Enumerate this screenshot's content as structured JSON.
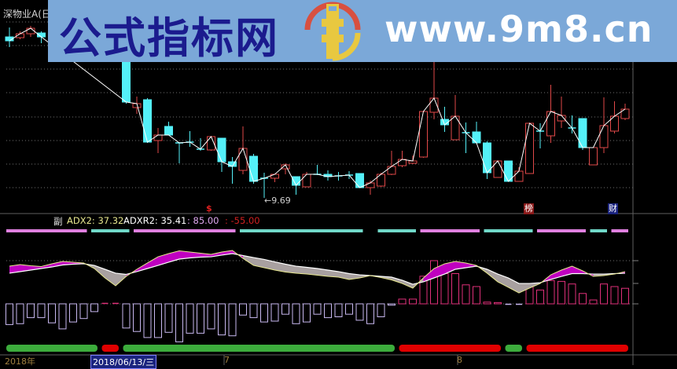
{
  "window": {
    "title": "深物业A(日"
  },
  "watermark": {
    "site_name": "公式指标网",
    "url": "www.9m8.cn",
    "logo_text": "www.9m8.cn"
  },
  "price_pane": {
    "low_label": "←9.69",
    "markers": [
      {
        "text": "$",
        "color": "#e02020"
      },
      {
        "text": "榜",
        "bg": "#8b1a1a"
      },
      {
        "text": "财",
        "bg": "#1a237e"
      }
    ],
    "candles_ohlc": [
      [
        13.79,
        14.03,
        13.53,
        13.69
      ],
      [
        13.77,
        13.93,
        13.73,
        13.87
      ],
      [
        13.87,
        14.07,
        13.79,
        14.01
      ],
      [
        13.89,
        13.93,
        13.63,
        13.79
      ],
      null,
      null,
      null,
      null,
      null,
      null,
      null,
      [
        13.53,
        13.63,
        12.09,
        12.13
      ],
      [
        11.99,
        12.27,
        11.83,
        12.09
      ],
      [
        12.19,
        12.23,
        11.09,
        11.11
      ],
      [
        11.15,
        11.47,
        10.83,
        11.29
      ],
      [
        11.51,
        11.63,
        11.29,
        11.29
      ],
      [
        11.09,
        11.11,
        10.57,
        11.09
      ],
      [
        11.11,
        11.39,
        10.99,
        11.11
      ],
      [
        10.93,
        11.21,
        10.89,
        10.93
      ],
      [
        10.91,
        11.25,
        10.89,
        11.25
      ],
      [
        11.21,
        11.21,
        10.35,
        10.61
      ],
      [
        10.61,
        10.73,
        10.05,
        10.49
      ],
      [
        10.39,
        11.51,
        10.29,
        10.95
      ],
      [
        10.75,
        10.81,
        10.05,
        10.11
      ],
      [
        10.19,
        10.33,
        9.69,
        10.19
      ],
      [
        10.19,
        10.29,
        10.09,
        10.29
      ],
      [
        10.43,
        10.57,
        10.29,
        10.53
      ],
      [
        10.23,
        10.23,
        9.77,
        10.01
      ],
      [
        9.97,
        10.35,
        9.97,
        10.29
      ],
      [
        10.29,
        10.53,
        10.27,
        10.29
      ],
      [
        10.29,
        10.39,
        10.13,
        10.23
      ],
      [
        10.25,
        10.35,
        10.13,
        10.25
      ],
      [
        10.27,
        10.37,
        10.17,
        10.27
      ],
      [
        10.31,
        10.31,
        9.95,
        9.95
      ],
      [
        9.95,
        10.13,
        9.77,
        10.07
      ],
      [
        9.99,
        10.33,
        9.97,
        10.29
      ],
      [
        10.29,
        10.89,
        10.27,
        10.49
      ],
      [
        10.51,
        10.89,
        10.47,
        10.67
      ],
      [
        10.57,
        10.77,
        10.55,
        10.63
      ],
      [
        10.73,
        11.91,
        10.71,
        11.89
      ],
      [
        11.87,
        13.23,
        11.69,
        12.23
      ],
      [
        11.69,
        12.01,
        11.37,
        11.55
      ],
      [
        11.17,
        12.31,
        11.17,
        11.77
      ],
      [
        11.35,
        11.61,
        10.83,
        11.35
      ],
      [
        11.37,
        11.63,
        11.09,
        11.09
      ],
      [
        11.09,
        11.13,
        10.17,
        10.33
      ],
      [
        10.21,
        10.63,
        10.21,
        10.63
      ],
      [
        10.63,
        10.63,
        10.11,
        10.11
      ],
      [
        10.11,
        10.47,
        10.11,
        10.37
      ],
      [
        10.31,
        11.59,
        10.31,
        11.59
      ],
      [
        11.39,
        11.59,
        10.95,
        11.39
      ],
      [
        11.27,
        12.57,
        11.09,
        11.89
      ],
      [
        11.65,
        12.27,
        11.47,
        11.79
      ],
      [
        11.47,
        11.79,
        11.33,
        11.47
      ],
      [
        11.71,
        11.71,
        10.91,
        10.97
      ],
      [
        10.53,
        10.97,
        10.53,
        10.97
      ],
      [
        10.97,
        12.25,
        10.83,
        11.53
      ],
      [
        11.39,
        12.15,
        11.33,
        11.77
      ],
      [
        11.71,
        12.09,
        11.67,
        11.95
      ]
    ],
    "colors": {
      "up": "#e04848",
      "down": "#54f0f8",
      "ma": "#ffffff"
    }
  },
  "indicator": {
    "name": "副",
    "adx_label": "ADX2: 37.32",
    "adxr_label": "ADXR2: 35.41",
    "upper_label": ": 85.00",
    "lower_label": ": -55.00",
    "adx": [
      43.6,
      45.5,
      44.1,
      43.2,
      46.4,
      49.1,
      48.2,
      47.3,
      40.9,
      30,
      20.9,
      31.8,
      40,
      47.3,
      54.5,
      58.2,
      61.4,
      60,
      58.6,
      57.3,
      60,
      61.8,
      52.7,
      44.5,
      41.8,
      39.1,
      36.8,
      35.5,
      34.5,
      33.2,
      31.8,
      30.9,
      28.2,
      30,
      32.7,
      30.5,
      27.7,
      23.6,
      18.2,
      30,
      40.9,
      46.4,
      49.1,
      47.3,
      44.5,
      35.5,
      25.5,
      19.1,
      12.7,
      18.2,
      23.6,
      33.6,
      39.1,
      43.6,
      38.2,
      31.8,
      32.7,
      34.5,
      37.32
    ],
    "adxr": [
      35.5,
      37.3,
      39.1,
      40.9,
      42.7,
      45,
      45.9,
      46.4,
      44.5,
      40,
      35.5,
      34.1,
      37.3,
      40.9,
      44.5,
      48.2,
      51.8,
      53.2,
      54.1,
      54.5,
      56.4,
      58.2,
      55.9,
      53.6,
      51.4,
      48.6,
      45.9,
      43.6,
      42.3,
      40.9,
      39.1,
      37.3,
      35,
      33.6,
      32.7,
      31.8,
      30.9,
      27.3,
      22.7,
      25.5,
      30,
      34.5,
      40,
      41.8,
      43.6,
      40,
      34.5,
      30,
      23.6,
      23.6,
      24.5,
      28.2,
      31.8,
      35,
      35,
      34.5,
      34.5,
      35,
      35.41
    ],
    "hist": [
      -24,
      -23,
      -16,
      -16,
      -22,
      -29,
      -21,
      -17,
      -9,
      0.5,
      0.5,
      -28,
      -32,
      -39,
      -39,
      -33,
      -44,
      -34,
      -34,
      -29,
      -36,
      -37,
      -13,
      -16,
      -21,
      -20,
      -12,
      -23,
      -21,
      -12,
      -16,
      -15,
      -12,
      -19,
      -23,
      -15,
      -1.5,
      5.5,
      5.5,
      32,
      50,
      35,
      35,
      22,
      20,
      2,
      1.5,
      -0.5,
      -0.5,
      20,
      16,
      27,
      26,
      23,
      12,
      4.5,
      23,
      20,
      18
    ],
    "signal_top": "PPPPPPPPCCCCPPPPPPPPPPCCCCCCCCCCCC_CCCCPPPPPPCCCCCPPPPPCCPP",
    "signal_bottom": "GGGGGGGGGRRGGGGGGGGGGGGGGGGGGGGGGGGGGRRRRRRRRRRGGRRRRRRRRRR",
    "colors": {
      "adx": "#e8e890",
      "adxr": "#ffffff",
      "rise_fill": "#c000c0",
      "fall_fill": "#a8a0a0",
      "hist_pos": "#e0307a",
      "hist_neg": "#c8b8f0",
      "sig_pink": "#e080e0",
      "sig_cyan": "#70d8c8",
      "green": "#3cac3c",
      "red": "#e00000"
    }
  },
  "date_axis": {
    "year": "2018年",
    "cursor_date": "2018/06/13/三",
    "months": [
      "7",
      "8"
    ]
  }
}
